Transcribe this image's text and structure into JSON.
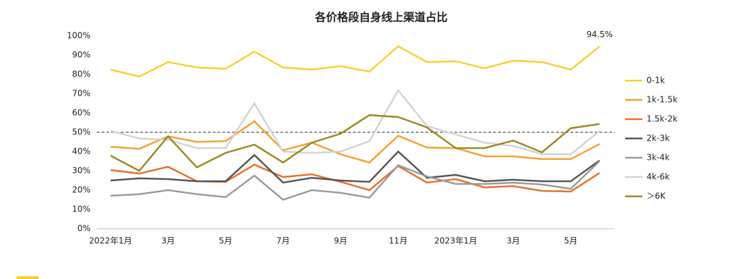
{
  "chart_data": {
    "type": "line",
    "title": "各价格段自身线上渠道占比",
    "categories": [
      "2022年1月",
      null,
      "3月",
      null,
      "5月",
      null,
      "7月",
      null,
      "9月",
      null,
      "11月",
      null,
      "2023年1月",
      null,
      "3月",
      null,
      "5月",
      null
    ],
    "ylim": [
      0,
      100
    ],
    "yticks": [
      {
        "value": 0,
        "label": "0%"
      },
      {
        "value": 10,
        "label": "10%"
      },
      {
        "value": 20,
        "label": "20%"
      },
      {
        "value": 30,
        "label": "30%"
      },
      {
        "value": 40,
        "label": "40%"
      },
      {
        "value": 50,
        "label": "50%"
      },
      {
        "value": 60,
        "label": "60%"
      },
      {
        "value": 70,
        "label": "70%"
      },
      {
        "value": 80,
        "label": "80%"
      },
      {
        "value": 90,
        "label": "90%"
      },
      {
        "value": 100,
        "label": "100%"
      }
    ],
    "reference_line": 50,
    "annotation": {
      "value": 94.5,
      "label": "94.5%"
    },
    "legend": "right",
    "series": [
      {
        "name": "0-1k",
        "color": "#f5d130",
        "values": [
          82.5,
          78.9,
          86.4,
          83.6,
          82.9,
          91.8,
          83.6,
          82.5,
          84.3,
          81.4,
          94.6,
          86.4,
          86.8,
          83.2,
          87.1,
          86.4,
          82.5,
          94.5
        ]
      },
      {
        "name": "1k-1.5k",
        "color": "#f4a030",
        "values": [
          42.5,
          41.4,
          47.9,
          45,
          45.4,
          55.7,
          40.7,
          44.6,
          38.6,
          34.3,
          48.2,
          42.1,
          41.8,
          37.5,
          37.5,
          36.1,
          36.1,
          43.9
        ]
      },
      {
        "name": "1.5k-2k",
        "color": "#e8702a",
        "values": [
          30.4,
          28.6,
          32.1,
          24.6,
          24.3,
          33.2,
          26.8,
          28.2,
          24.3,
          20,
          32.5,
          23.9,
          25.7,
          21.4,
          22.1,
          19.6,
          19.3,
          28.9
        ]
      },
      {
        "name": "2k-3k",
        "color": "#555555",
        "values": [
          25,
          26.1,
          25.7,
          24.6,
          24.6,
          38.2,
          23.9,
          26.4,
          25,
          24.3,
          40,
          26.4,
          27.9,
          24.6,
          25.4,
          24.6,
          24.6,
          35.4
        ]
      },
      {
        "name": "3k-4k",
        "color": "#9a9a9a",
        "values": [
          17.1,
          17.9,
          20,
          17.9,
          16.4,
          27.5,
          15,
          20,
          18.6,
          16.1,
          32.9,
          27.1,
          23.2,
          23.2,
          23.9,
          22.9,
          20.7,
          35
        ]
      },
      {
        "name": "4k-6k",
        "color": "#d3d3d3",
        "values": [
          50.7,
          46.8,
          46.1,
          41.8,
          41.8,
          65,
          40,
          39.3,
          40,
          45.4,
          71.8,
          53.2,
          48.9,
          44.6,
          42.9,
          38.6,
          38.6,
          50.7
        ]
      },
      {
        "name": "＞6K",
        "color": "#9a8a20",
        "values": [
          37.9,
          30,
          47.9,
          31.8,
          39.3,
          43.6,
          34.3,
          44.6,
          49.3,
          58.9,
          57.9,
          52.5,
          41.8,
          41.8,
          45.7,
          39.6,
          52.1,
          54.3
        ]
      }
    ]
  }
}
